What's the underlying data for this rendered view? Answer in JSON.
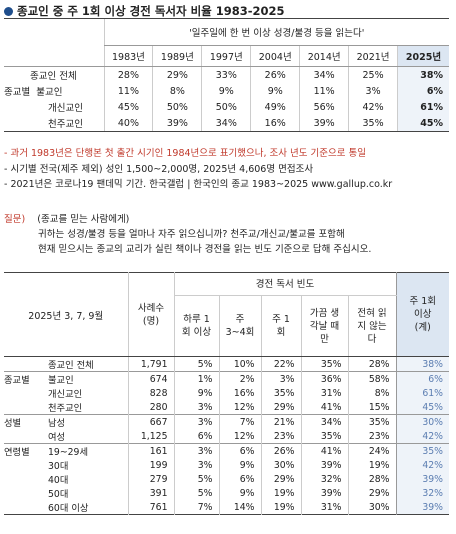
{
  "title": "종교인 중 주 1회 이상 경전 독서자 비율 1983-2025",
  "t1": {
    "header": "'일주일에 한 번 이상 성경/불경 등을 읽는다'",
    "years": [
      "1983년",
      "1989년",
      "1997년",
      "2004년",
      "2014년",
      "2021년",
      "2025년"
    ],
    "rows": [
      {
        "g": "",
        "l": "종교인 전체",
        "v": [
          "28%",
          "29%",
          "33%",
          "26%",
          "34%",
          "25%",
          "38%"
        ]
      },
      {
        "g": "종교별",
        "l": "불교인",
        "v": [
          "11%",
          "8%",
          "9%",
          "9%",
          "11%",
          "3%",
          "6%"
        ]
      },
      {
        "g": "",
        "l": "개신교인",
        "v": [
          "45%",
          "50%",
          "50%",
          "49%",
          "56%",
          "42%",
          "61%"
        ]
      },
      {
        "g": "",
        "l": "천주교인",
        "v": [
          "40%",
          "39%",
          "34%",
          "16%",
          "39%",
          "35%",
          "45%"
        ]
      }
    ]
  },
  "notes": {
    "n1": "- 과거 1983년은 단행본 첫 출간 시기인 1984년으로 표기했으나, 조사 년도 기준으로 통일",
    "n2": "- 시기별 전국(제주 제외) 성인 1,500~2,000명, 2025년 4,606명 면접조사",
    "n3": "- 2021년은 코로나19 팬데믹 기간. 한국갤럽 | 한국인의 종교 1983~2025 www.gallup.co.kr"
  },
  "question": {
    "label": "질문)",
    "cond": "(종교를 믿는 사람에게)",
    "line1": "귀하는 성경/불경 등을 얼마나 자주 읽으십니까? 천주교/개신교/불교를 포함해",
    "line2": "현재 믿으시는 종교의 교리가 실린 책이나 경전을 읽는 빈도 기준으로 답해 주십시오."
  },
  "t2": {
    "date": "2025년 3, 7, 9월",
    "n_label": "사례수 (명)",
    "group_label": "경전 독서 빈도",
    "cols": [
      "하루 1회 이상",
      "주 3~4회",
      "주 1회",
      "가끔 생각날 때만",
      "전혀 읽지 않는다",
      "주 1회 이상 (계)"
    ],
    "rows": [
      {
        "g": "",
        "l": "종교인 전체",
        "n": "1,791",
        "v": [
          "5%",
          "10%",
          "22%",
          "35%",
          "28%",
          "38%"
        ]
      },
      {
        "g": "종교별",
        "l": "불교인",
        "n": "674",
        "v": [
          "1%",
          "2%",
          "3%",
          "36%",
          "58%",
          "6%"
        ]
      },
      {
        "g": "",
        "l": "개신교인",
        "n": "828",
        "v": [
          "9%",
          "16%",
          "35%",
          "31%",
          "8%",
          "61%"
        ]
      },
      {
        "g": "",
        "l": "천주교인",
        "n": "280",
        "v": [
          "3%",
          "12%",
          "29%",
          "41%",
          "15%",
          "45%"
        ]
      },
      {
        "g": "성별",
        "l": "남성",
        "n": "667",
        "v": [
          "3%",
          "7%",
          "21%",
          "34%",
          "35%",
          "30%"
        ]
      },
      {
        "g": "",
        "l": "여성",
        "n": "1,125",
        "v": [
          "6%",
          "12%",
          "23%",
          "35%",
          "23%",
          "42%"
        ]
      },
      {
        "g": "연령별",
        "l": "19~29세",
        "n": "161",
        "v": [
          "3%",
          "6%",
          "26%",
          "41%",
          "24%",
          "35%"
        ]
      },
      {
        "g": "",
        "l": "30대",
        "n": "199",
        "v": [
          "3%",
          "9%",
          "30%",
          "39%",
          "19%",
          "42%"
        ]
      },
      {
        "g": "",
        "l": "40대",
        "n": "279",
        "v": [
          "5%",
          "6%",
          "29%",
          "32%",
          "28%",
          "39%"
        ]
      },
      {
        "g": "",
        "l": "50대",
        "n": "391",
        "v": [
          "5%",
          "9%",
          "19%",
          "39%",
          "29%",
          "32%"
        ]
      },
      {
        "g": "",
        "l": "60대 이상",
        "n": "761",
        "v": [
          "7%",
          "14%",
          "19%",
          "31%",
          "30%",
          "39%"
        ]
      }
    ]
  }
}
